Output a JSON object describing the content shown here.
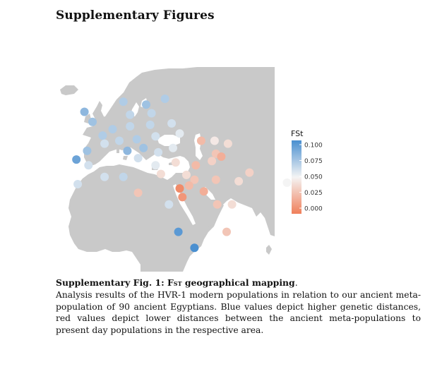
{
  "heading": "Supplementary Figures",
  "figure": {
    "legend": {
      "title": "FSt",
      "ticks": [
        "0.100",
        "0.075",
        "0.050",
        "0.025",
        "0.000"
      ],
      "colors": {
        "high": "#4a8fd0",
        "mid": "#f4f4f4",
        "low": "#f07f5a"
      }
    },
    "map_colors": {
      "land": "#c9c9c9",
      "sea": "#ffffff"
    },
    "points": [
      {
        "lon": -21.0,
        "lat": 64.2,
        "fst": 0.075
      },
      {
        "lon": -4.5,
        "lat": 57.0,
        "fst": 0.08
      },
      {
        "lon": -1.5,
        "lat": 53.5,
        "fst": 0.075
      },
      {
        "lon": 2.3,
        "lat": 48.8,
        "fst": 0.07
      },
      {
        "lon": 10.0,
        "lat": 60.5,
        "fst": 0.07
      },
      {
        "lon": 18.5,
        "lat": 59.5,
        "fst": 0.075
      },
      {
        "lon": 25.5,
        "lat": 61.5,
        "fst": 0.07
      },
      {
        "lon": 12.5,
        "lat": 56.0,
        "fst": 0.065
      },
      {
        "lon": 20.5,
        "lat": 56.5,
        "fst": 0.065
      },
      {
        "lon": 6.0,
        "lat": 51.0,
        "fst": 0.07
      },
      {
        "lon": 12.5,
        "lat": 52.0,
        "fst": 0.065
      },
      {
        "lon": 20.0,
        "lat": 52.5,
        "fst": 0.065
      },
      {
        "lon": 28.0,
        "lat": 53.0,
        "fst": 0.06
      },
      {
        "lon": 3.0,
        "lat": 46.0,
        "fst": 0.06
      },
      {
        "lon": 8.5,
        "lat": 47.0,
        "fst": 0.065
      },
      {
        "lon": 15.0,
        "lat": 47.5,
        "fst": 0.07
      },
      {
        "lon": 22.0,
        "lat": 48.5,
        "fst": 0.06
      },
      {
        "lon": 31.0,
        "lat": 49.5,
        "fst": 0.055
      },
      {
        "lon": -3.5,
        "lat": 43.5,
        "fst": 0.075
      },
      {
        "lon": -7.5,
        "lat": 40.5,
        "fst": 0.09
      },
      {
        "lon": -3.0,
        "lat": 38.5,
        "fst": 0.06
      },
      {
        "lon": 11.5,
        "lat": 43.5,
        "fst": 0.08
      },
      {
        "lon": 17.5,
        "lat": 44.5,
        "fst": 0.075
      },
      {
        "lon": 15.5,
        "lat": 41.0,
        "fst": 0.06
      },
      {
        "lon": 23.0,
        "lat": 43.0,
        "fst": 0.06
      },
      {
        "lon": 28.5,
        "lat": 44.5,
        "fst": 0.055
      },
      {
        "lon": 39.0,
        "lat": 47.0,
        "fst": 0.025
      },
      {
        "lon": 44.0,
        "lat": 47.0,
        "fst": 0.045
      },
      {
        "lon": 49.0,
        "lat": 46.0,
        "fst": 0.04
      },
      {
        "lon": 44.5,
        "lat": 42.5,
        "fst": 0.03
      },
      {
        "lon": 46.5,
        "lat": 41.5,
        "fst": 0.02
      },
      {
        "lon": 22.0,
        "lat": 38.5,
        "fst": 0.055
      },
      {
        "lon": 24.0,
        "lat": 35.5,
        "fst": 0.04
      },
      {
        "lon": 29.5,
        "lat": 39.5,
        "fst": 0.04
      },
      {
        "lon": 37.0,
        "lat": 38.5,
        "fst": 0.025
      },
      {
        "lon": 33.5,
        "lat": 35.2,
        "fst": 0.04
      },
      {
        "lon": 36.5,
        "lat": 33.5,
        "fst": 0.03
      },
      {
        "lon": 34.5,
        "lat": 31.5,
        "fst": 0.025
      },
      {
        "lon": 31.0,
        "lat": 30.5,
        "fst": 0.005
      },
      {
        "lon": 32.0,
        "lat": 27.5,
        "fst": 0.01
      },
      {
        "lon": 40.0,
        "lat": 29.5,
        "fst": 0.02
      },
      {
        "lon": 44.5,
        "lat": 33.5,
        "fst": 0.03
      },
      {
        "lon": 53.0,
        "lat": 33.0,
        "fst": 0.04
      },
      {
        "lon": 57.0,
        "lat": 36.0,
        "fst": 0.035
      },
      {
        "lon": 45.0,
        "lat": 25.0,
        "fst": 0.03
      },
      {
        "lon": 50.5,
        "lat": 25.0,
        "fst": 0.04
      },
      {
        "lon": 48.5,
        "lat": 15.5,
        "fst": 0.03
      },
      {
        "lon": 71.0,
        "lat": 32.5,
        "fst": 0.05
      },
      {
        "lon": -7.0,
        "lat": 32.0,
        "fst": 0.06
      },
      {
        "lon": 3.0,
        "lat": 34.5,
        "fst": 0.06
      },
      {
        "lon": 10.0,
        "lat": 34.5,
        "fst": 0.065
      },
      {
        "lon": 15.5,
        "lat": 29.0,
        "fst": 0.03
      },
      {
        "lon": 27.0,
        "lat": 25.0,
        "fst": 0.06
      },
      {
        "lon": 30.5,
        "lat": 15.5,
        "fst": 0.095
      },
      {
        "lon": 36.5,
        "lat": 10.0,
        "fst": 0.1
      },
      {
        "lon": 43.0,
        "lat": 40.0,
        "fst": 0.035
      }
    ]
  },
  "caption": {
    "label": "Supplementary Fig. 1:",
    "title_prefix": "F",
    "title_sub": "ST",
    "title_rest": " geographical mapping",
    "title_end": ".",
    "body": "Analysis results of the HVR-1 modern populations in relation to our ancient meta-population of 90 ancient Egyptians. Blue values depict higher genetic distances, red values depict lower distances between the ancient meta-populations to present day populations in the respective area."
  }
}
